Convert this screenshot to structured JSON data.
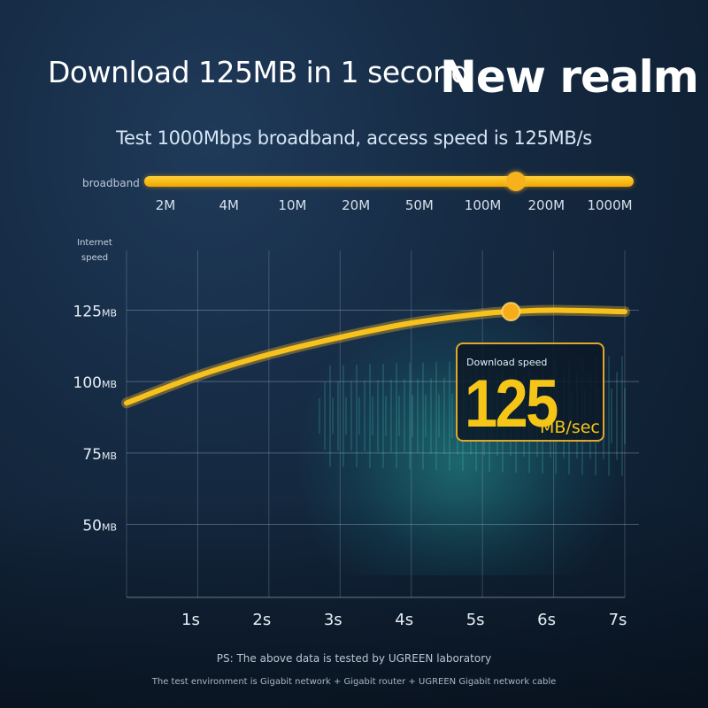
{
  "header": {
    "headline": "Download 125MB in 1 second",
    "tagline": "New realm",
    "subtitle": "Test 1000Mbps broadband, access speed is 125MB/s"
  },
  "broadband": {
    "label": "broadband",
    "ticks": [
      "2M",
      "4M",
      "10M",
      "20M",
      "50M",
      "100M",
      "200M",
      "1000M"
    ],
    "selected_position": 0.76
  },
  "chart_data": {
    "type": "line",
    "ylabel": "Internet\nspeed",
    "xlabel": "",
    "x": [
      0,
      1,
      2,
      3,
      4,
      5,
      5.4,
      6,
      7
    ],
    "y": [
      92.5,
      102,
      109.5,
      115.5,
      120.5,
      123.8,
      124.5,
      125,
      124.5
    ],
    "x_ticks": [
      "1s",
      "2s",
      "3s",
      "4s",
      "5s",
      "6s",
      "7s"
    ],
    "y_ticks": [
      {
        "value": 125,
        "label": "125",
        "unit": "MB"
      },
      {
        "value": 100,
        "label": "100",
        "unit": "MB"
      },
      {
        "value": 75,
        "label": "75",
        "unit": "MB"
      },
      {
        "value": 50,
        "label": "50",
        "unit": "MB"
      }
    ],
    "xlim": [
      0,
      7
    ],
    "ylim": [
      25,
      135
    ],
    "highlight_point": {
      "x": 5.4,
      "y": 124.5
    },
    "grid": true,
    "line_color": "#f7c21b"
  },
  "callout": {
    "label": "Download speed",
    "value": "125",
    "unit": "MB/sec"
  },
  "footer": {
    "note": "PS: The above data is tested by UGREEN laboratory",
    "environment": "The test environment is Gigabit network + Gigabit router + UGREEN Gigabit network cable"
  }
}
